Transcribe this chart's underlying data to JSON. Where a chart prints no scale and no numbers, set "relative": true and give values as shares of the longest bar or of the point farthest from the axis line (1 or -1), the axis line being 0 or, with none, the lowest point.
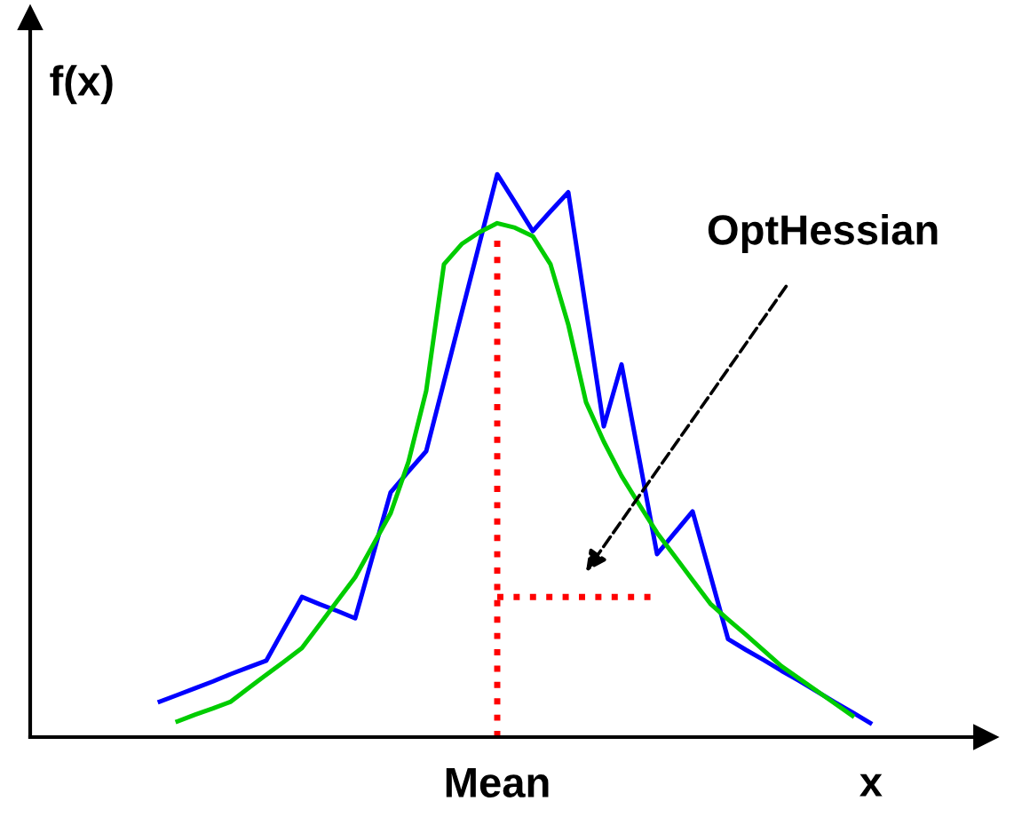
{
  "chart_data": {
    "type": "line",
    "relative": true,
    "xlabel": "x",
    "ylabel": "f(x)",
    "categories": [
      null,
      null,
      null,
      null,
      null,
      null,
      null,
      null,
      null,
      null,
      null,
      null,
      null,
      null,
      null,
      null,
      null,
      null,
      null,
      null,
      null,
      null,
      null,
      null,
      null,
      null,
      null,
      null,
      null,
      null,
      null,
      null,
      null,
      null,
      null,
      null,
      null,
      null,
      null,
      null,
      null
    ],
    "series": [
      {
        "color": "#0000ff",
        "line_style": "solid",
        "values": [
          0.063,
          0.075,
          0.087,
          0.099,
          0.112,
          0.124,
          0.136,
          0.193,
          0.249,
          0.236,
          0.224,
          0.211,
          0.323,
          0.435,
          0.472,
          0.508,
          0.631,
          0.754,
          0.877,
          1,
          0.95,
          0.899,
          0.934,
          0.968,
          0.76,
          0.552,
          0.662,
          0.494,
          0.325,
          0.363,
          0.401,
          0.288,
          0.174,
          0.155,
          0.137,
          0.118,
          0.1,
          0.081,
          0.062,
          0.044,
          0.025
        ]
      },
      {
        "color": "#00cc00",
        "line_style": "solid",
        "values": [
          null,
          0.028,
          0.04,
          0.051,
          0.063,
          0.087,
          0.111,
          0.134,
          0.158,
          0.2,
          0.242,
          0.284,
          0.341,
          0.398,
          0.489,
          0.615,
          0.84,
          0.876,
          0.897,
          0.913,
          0.905,
          0.89,
          0.84,
          0.733,
          0.595,
          0.525,
          0.464,
          0.413,
          0.363,
          0.321,
          0.279,
          0.237,
          0.209,
          0.182,
          0.154,
          0.126,
          0.104,
          0.082,
          0.06,
          0.038,
          null
        ]
      },
      {
        "color": "#ff0000",
        "line_style": "dotted",
        "values": [
          null,
          null,
          null,
          null,
          null,
          null,
          null,
          null,
          null,
          null,
          null,
          null,
          null,
          null,
          null,
          null,
          null,
          null,
          null,
          0.249,
          0.249,
          0.249,
          0.249,
          0.249,
          0.249,
          0.249,
          0.249,
          0.249,
          0.249,
          null,
          null,
          null,
          null,
          null,
          null,
          null,
          null,
          null,
          null,
          null,
          null
        ]
      }
    ],
    "annotations": [
      "OptHessian",
      "Mean"
    ]
  }
}
